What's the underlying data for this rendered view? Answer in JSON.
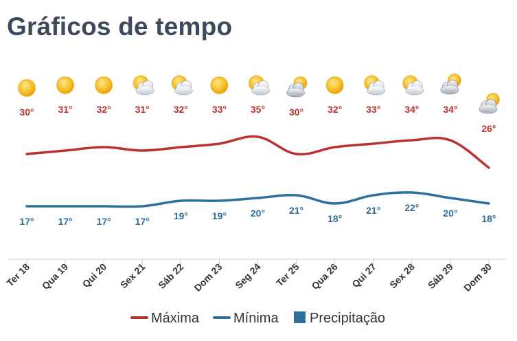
{
  "title": "Gráficos de tempo",
  "chart_data": {
    "type": "line",
    "categories": [
      "Ter 18",
      "Qua 19",
      "Qui 20",
      "Sex 21",
      "Sáb 22",
      "Dom 23",
      "Seg 24",
      "Ter 25",
      "Qua 26",
      "Qui 27",
      "Sex 28",
      "Sáb 29",
      "Dom 30"
    ],
    "series": [
      {
        "name": "Máxima",
        "color": "#b8322e",
        "values": [
          30,
          31,
          32,
          31,
          32,
          33,
          35,
          30,
          32,
          33,
          34,
          34,
          26
        ]
      },
      {
        "name": "Mínima",
        "color": "#2e6f9e",
        "values": [
          17,
          17,
          17,
          17,
          19,
          19,
          20,
          21,
          18,
          21,
          22,
          20,
          18
        ]
      }
    ],
    "value_labels": {
      "max": [
        "30°",
        "31°",
        "32°",
        "31°",
        "32°",
        "33°",
        "35°",
        "30°",
        "32°",
        "33°",
        "34°",
        "34°",
        "26°"
      ],
      "min": [
        "17°",
        "17°",
        "17°",
        "17°",
        "19°",
        "19°",
        "20°",
        "21°",
        "18°",
        "21°",
        "22°",
        "20°",
        "18°"
      ]
    },
    "icons": [
      "sun-icon",
      "sun-icon",
      "sun-icon",
      "partly-cloudy-icon",
      "partly-cloudy-icon",
      "sun-icon",
      "partly-cloudy-icon",
      "cloudy-icon",
      "sun-icon",
      "partly-cloudy-icon",
      "partly-cloudy-icon",
      "cloudy-icon",
      "cloudy-icon"
    ],
    "legend": [
      {
        "label": "Máxima",
        "kind": "line",
        "color": "#b8322e"
      },
      {
        "label": "Mínima",
        "kind": "line",
        "color": "#2e6f9e"
      },
      {
        "label": "Precipitação",
        "kind": "square",
        "color": "#2e6f9e"
      }
    ],
    "legend_position": "bottom-center",
    "grid": false
  }
}
